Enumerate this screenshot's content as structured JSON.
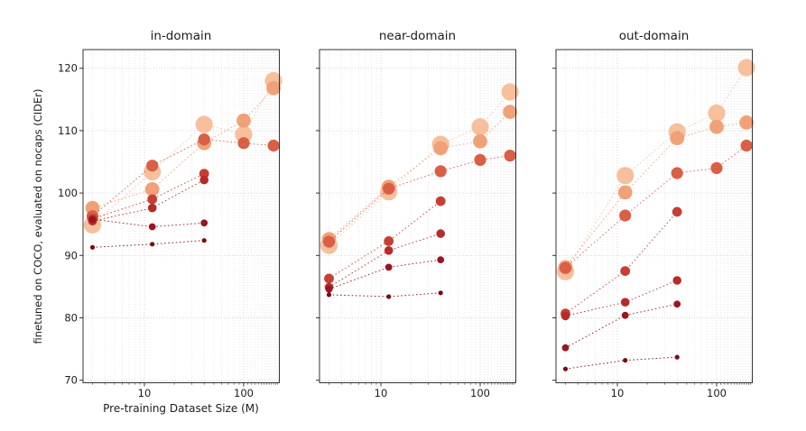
{
  "figure": {
    "background": "#ffffff"
  },
  "chart_data": {
    "type": "scatter",
    "description": "three bubble scatter subplots with dotted connecting lines, bubble size and color encode the series (darkest/smallest to lightest/largest)",
    "xscale": "log",
    "xlabel": "Pre-training Dataset Size (M)",
    "ylabel": "finetuned on COCO, evaluated on nocaps (CIDEr)",
    "xlim": [
      2.41,
      226
    ],
    "ylim": [
      69.6,
      123
    ],
    "xticks": [
      10,
      100
    ],
    "xtick_labels": [
      "10",
      "100"
    ],
    "minor_xticks": [
      3,
      4,
      5,
      6,
      7,
      8,
      9,
      20,
      30,
      40,
      50,
      60,
      70,
      80,
      90,
      110,
      120,
      130,
      140,
      150,
      160,
      170,
      180,
      190,
      200,
      210,
      220
    ],
    "yticks": [
      70,
      80,
      90,
      100,
      110,
      120
    ],
    "ytick_labels": [
      "70",
      "80",
      "90",
      "100",
      "110",
      "120"
    ],
    "grid": "major and minor, dotted, light gray",
    "legend_position": "none",
    "x_values": [
      3,
      12,
      40,
      100,
      200
    ],
    "series_style": [
      {
        "id": "series_1",
        "color": "#f6c09c",
        "marker_radius": 9.6
      },
      {
        "id": "series_2",
        "color": "#f1a178",
        "marker_radius": 7.9
      },
      {
        "id": "series_3",
        "color": "#d95f46",
        "marker_radius": 6.6
      },
      {
        "id": "series_4",
        "color": "#c73f32",
        "marker_radius": 5.4
      },
      {
        "id": "series_5",
        "color": "#b52c2b",
        "marker_radius": 4.8
      },
      {
        "id": "series_6",
        "color": "#9c1422",
        "marker_radius": 3.9
      },
      {
        "id": "series_7",
        "color": "#7a0c15",
        "marker_radius": 2.6
      }
    ],
    "subplots": [
      {
        "title": "in-domain",
        "series": {
          "series_1": [
            [
              3,
              94.9
            ],
            [
              12,
              103.4
            ],
            [
              40,
              111.0
            ],
            [
              100,
              109.4
            ],
            [
              200,
              118.0
            ]
          ],
          "series_2": [
            [
              3,
              97.6
            ],
            [
              12,
              100.6
            ],
            [
              40,
              108.0
            ],
            [
              100,
              111.6
            ],
            [
              200,
              116.8
            ]
          ],
          "series_3": [
            [
              3,
              96.3
            ],
            [
              12,
              104.4
            ],
            [
              40,
              108.6
            ],
            [
              100,
              108.0
            ],
            [
              200,
              107.6
            ]
          ],
          "series_4": [
            [
              3,
              95.9
            ],
            [
              12,
              99.0
            ],
            [
              40,
              103.1
            ]
          ],
          "series_5": [
            [
              3,
              95.5
            ],
            [
              12,
              97.6
            ],
            [
              40,
              102.1
            ]
          ],
          "series_6": [
            [
              3,
              95.8
            ],
            [
              12,
              94.6
            ],
            [
              40,
              95.2
            ]
          ],
          "series_7": [
            [
              3,
              91.3
            ],
            [
              12,
              91.8
            ],
            [
              40,
              92.4
            ]
          ]
        }
      },
      {
        "title": "near-domain",
        "series": {
          "series_1": [
            [
              3,
              91.6
            ],
            [
              12,
              100.2
            ],
            [
              40,
              107.8
            ],
            [
              100,
              110.6
            ],
            [
              200,
              116.2
            ]
          ],
          "series_2": [
            [
              3,
              92.6
            ],
            [
              12,
              101.0
            ],
            [
              40,
              107.2
            ],
            [
              100,
              108.3
            ],
            [
              200,
              113.0
            ]
          ],
          "series_3": [
            [
              3,
              92.2
            ],
            [
              12,
              100.7
            ],
            [
              40,
              103.5
            ],
            [
              100,
              105.3
            ],
            [
              200,
              106.0
            ]
          ],
          "series_4": [
            [
              3,
              86.3
            ],
            [
              12,
              92.3
            ],
            [
              40,
              98.7
            ]
          ],
          "series_5": [
            [
              3,
              84.9
            ],
            [
              12,
              90.8
            ],
            [
              40,
              93.5
            ]
          ],
          "series_6": [
            [
              3,
              84.6
            ],
            [
              12,
              88.1
            ],
            [
              40,
              89.3
            ]
          ],
          "series_7": [
            [
              3,
              83.7
            ],
            [
              12,
              83.4
            ],
            [
              40,
              84.0
            ]
          ]
        }
      },
      {
        "title": "out-domain",
        "series": {
          "series_1": [
            [
              3,
              87.4
            ],
            [
              12,
              102.8
            ],
            [
              40,
              109.8
            ],
            [
              100,
              112.8
            ],
            [
              200,
              120.1
            ]
          ],
          "series_2": [
            [
              3,
              88.1
            ],
            [
              12,
              100.1
            ],
            [
              40,
              108.8
            ],
            [
              100,
              110.6
            ],
            [
              200,
              111.3
            ]
          ],
          "series_3": [
            [
              3,
              88.0
            ],
            [
              12,
              96.4
            ],
            [
              40,
              103.2
            ],
            [
              100,
              104.0
            ],
            [
              200,
              107.6
            ]
          ],
          "series_4": [
            [
              3,
              80.7
            ],
            [
              12,
              87.5
            ],
            [
              40,
              97.0
            ]
          ],
          "series_5": [
            [
              3,
              80.3
            ],
            [
              12,
              82.5
            ],
            [
              40,
              86.0
            ]
          ],
          "series_6": [
            [
              3,
              75.2
            ],
            [
              12,
              80.4
            ],
            [
              40,
              82.2
            ]
          ],
          "series_7": [
            [
              3,
              71.8
            ],
            [
              12,
              73.2
            ],
            [
              40,
              73.7
            ]
          ]
        }
      }
    ]
  }
}
